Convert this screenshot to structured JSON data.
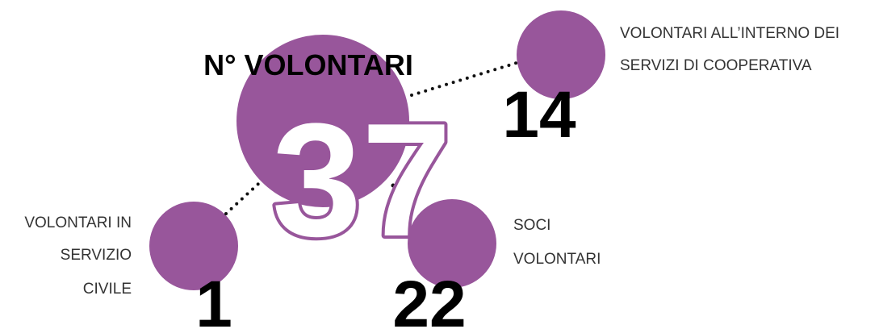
{
  "title": "N° VOLONTARI",
  "total": 37,
  "groups": [
    {
      "value": 14,
      "label_lines": [
        "VOLONTARI ALL’INTERNO DEI",
        "SERVIZI DI COOPERATIVA"
      ]
    },
    {
      "value": 1,
      "label_lines": [
        "VOLONTARI IN",
        "SERVIZIO",
        "CIVILE"
      ]
    },
    {
      "value": 22,
      "label_lines": [
        "SOCI",
        "VOLONTARI"
      ]
    }
  ]
}
